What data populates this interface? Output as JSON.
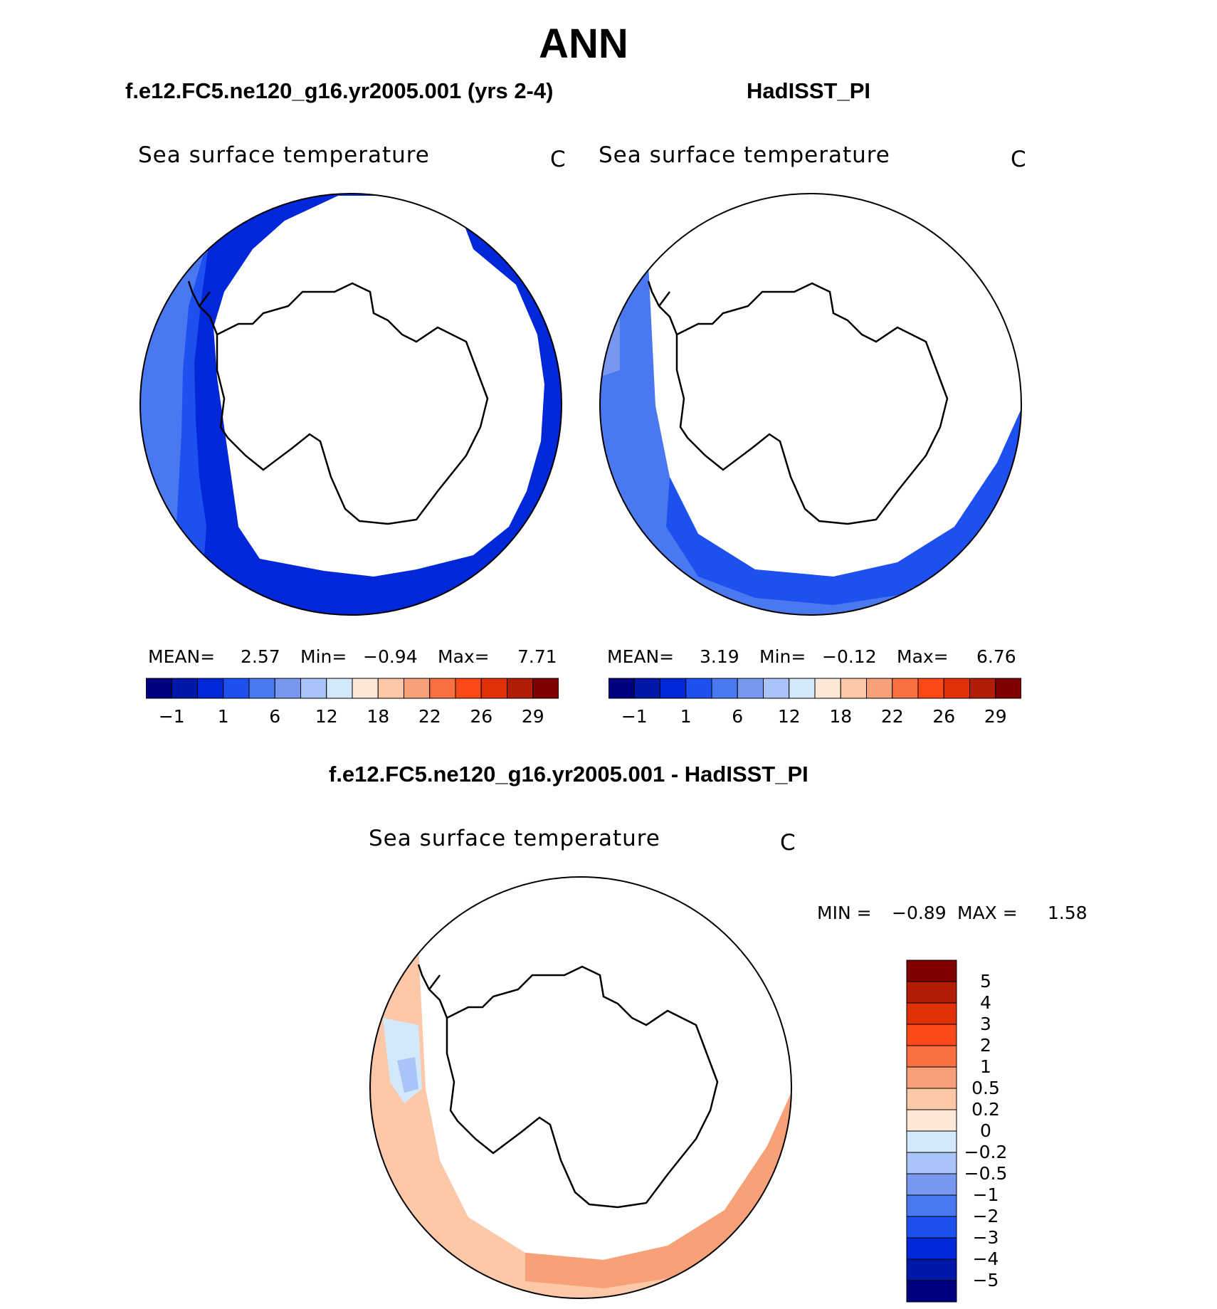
{
  "title": "ANN",
  "panels": [
    {
      "case_title": "f.e12.FC5.ne120_g16.yr2005.001 (yrs 2-4)",
      "variable": "Sea surface temperature",
      "units": "C",
      "stats": {
        "mean_label": "MEAN=",
        "mean": "2.57",
        "min_label": "Min=",
        "min": "−0.94",
        "max_label": "Max=",
        "max": "7.71"
      }
    },
    {
      "case_title": "HadISST_PI",
      "variable": "Sea surface temperature",
      "units": "C",
      "stats": {
        "mean_label": "MEAN=",
        "mean": "3.19",
        "min_label": "Min=",
        "min": "−0.12",
        "max_label": "Max=",
        "max": "6.76"
      }
    },
    {
      "case_title": "f.e12.FC5.ne120_g16.yr2005.001 - HadISST_PI",
      "variable": "Sea surface temperature",
      "units": "C",
      "stats": {
        "min_label": "MIN =",
        "min": "−0.89",
        "max_label": "MAX =",
        "max": "1.58"
      }
    }
  ],
  "colorbar_abs": {
    "colors": [
      "#00007f",
      "#0018a8",
      "#0028d8",
      "#1e50f0",
      "#4a78f0",
      "#7898f0",
      "#a8c4f8",
      "#d4e8fc",
      "#fde8d8",
      "#fcc8a8",
      "#f8a078",
      "#fb7040",
      "#fd4818",
      "#e03008",
      "#b01c04",
      "#800000"
    ],
    "tick_labels": [
      "−1",
      "1",
      "6",
      "12",
      "18",
      "22",
      "26",
      "29"
    ]
  },
  "colorbar_diff": {
    "colors": [
      "#00007f",
      "#0018a8",
      "#0028d8",
      "#1e50f0",
      "#4a78f0",
      "#7898f0",
      "#a8c4f8",
      "#d4e8fc",
      "#fde8d8",
      "#fcc8a8",
      "#f8a078",
      "#fb7040",
      "#fd4818",
      "#e03008",
      "#b01c04",
      "#800000"
    ],
    "tick_labels": [
      "−5",
      "−4",
      "−3",
      "−2",
      "−1",
      "−0.5",
      "−0.2",
      "0",
      "0.2",
      "0.5",
      "1",
      "2",
      "3",
      "4",
      "5"
    ]
  },
  "map_fills": {
    "model_outer": "#4a78f0",
    "model_mid": "#1e50f0",
    "model_inner": "#0028d8",
    "obs_outer": "#4a78f0",
    "obs_inner": "#1e50f0",
    "obs_far": "#7898f0",
    "diff_main": "#fcc8a8",
    "diff_warm": "#f8a078",
    "diff_cool": "#d4e8fc",
    "diff_cooler": "#a8c4f8"
  }
}
